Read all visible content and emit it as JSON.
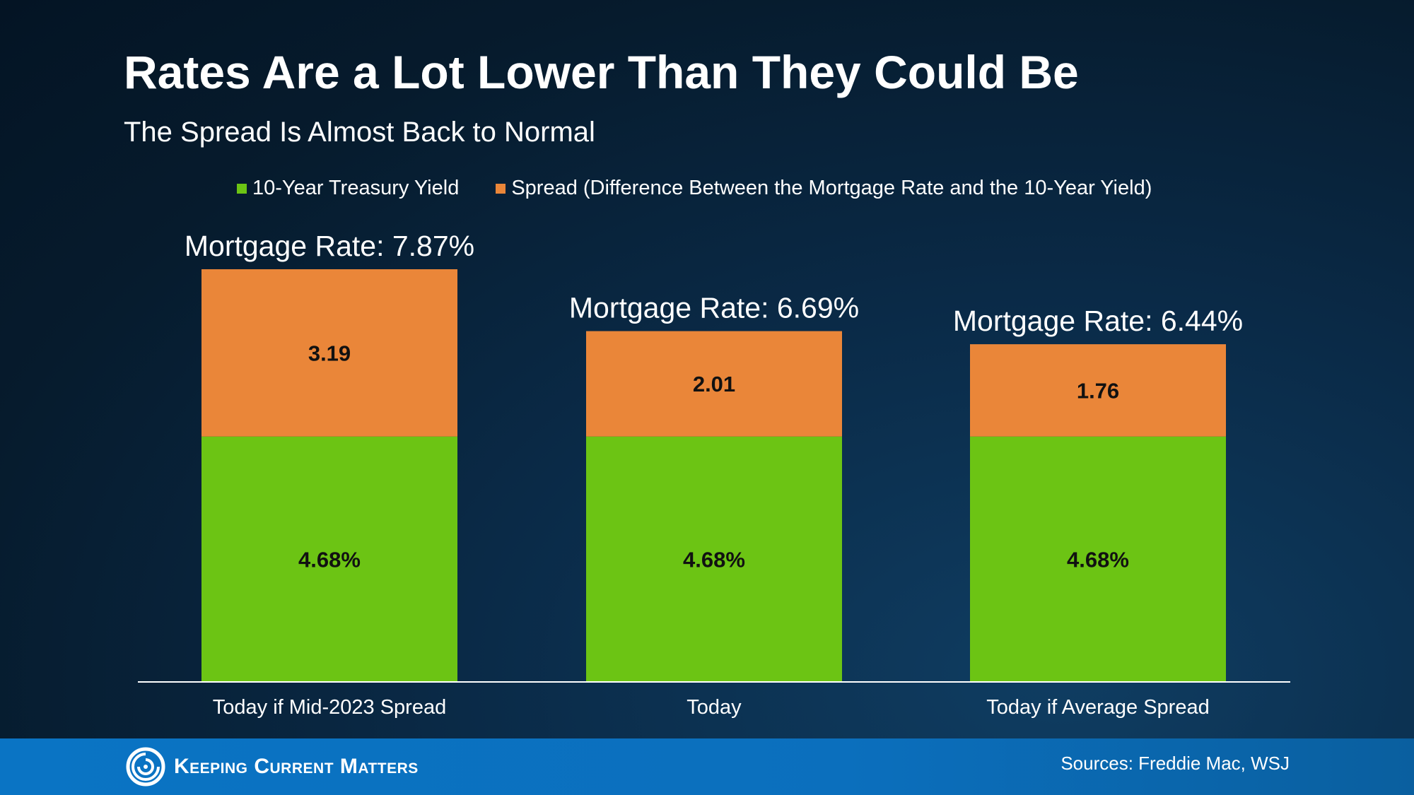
{
  "title": "Rates Are a Lot Lower Than They Could Be",
  "subtitle": "The Spread Is Almost Back to Normal",
  "legend": [
    {
      "label": "10-Year Treasury Yield",
      "color": "#6cc414"
    },
    {
      "label": "Spread (Difference Between the Mortgage Rate and the 10-Year Yield)",
      "color": "#ea8639"
    }
  ],
  "chart_data": {
    "type": "bar",
    "stacked": true,
    "categories": [
      "Today if Mid-2023 Spread",
      "Today",
      "Today if Average Spread"
    ],
    "series": [
      {
        "name": "10-Year Treasury Yield",
        "values": [
          4.68,
          4.68,
          4.68
        ],
        "labels": [
          "4.68%",
          "4.68%",
          "4.68%"
        ],
        "color": "#6cc414"
      },
      {
        "name": "Spread (Difference Between the Mortgage Rate and the 10-Year Yield)",
        "values": [
          3.19,
          2.01,
          1.76
        ],
        "labels": [
          "3.19",
          "2.01",
          "1.76"
        ],
        "color": "#ea8639"
      }
    ],
    "totals": [
      "Mortgage Rate: 7.87%",
      "Mortgage Rate: 6.69%",
      "Mortgage Rate: 6.44%"
    ],
    "ylim": [
      0,
      7.87
    ],
    "legend_position": "top",
    "grid": false
  },
  "footer": {
    "brand": "Keeping Current Matters",
    "sources": "Sources: Freddie Mac, WSJ"
  }
}
